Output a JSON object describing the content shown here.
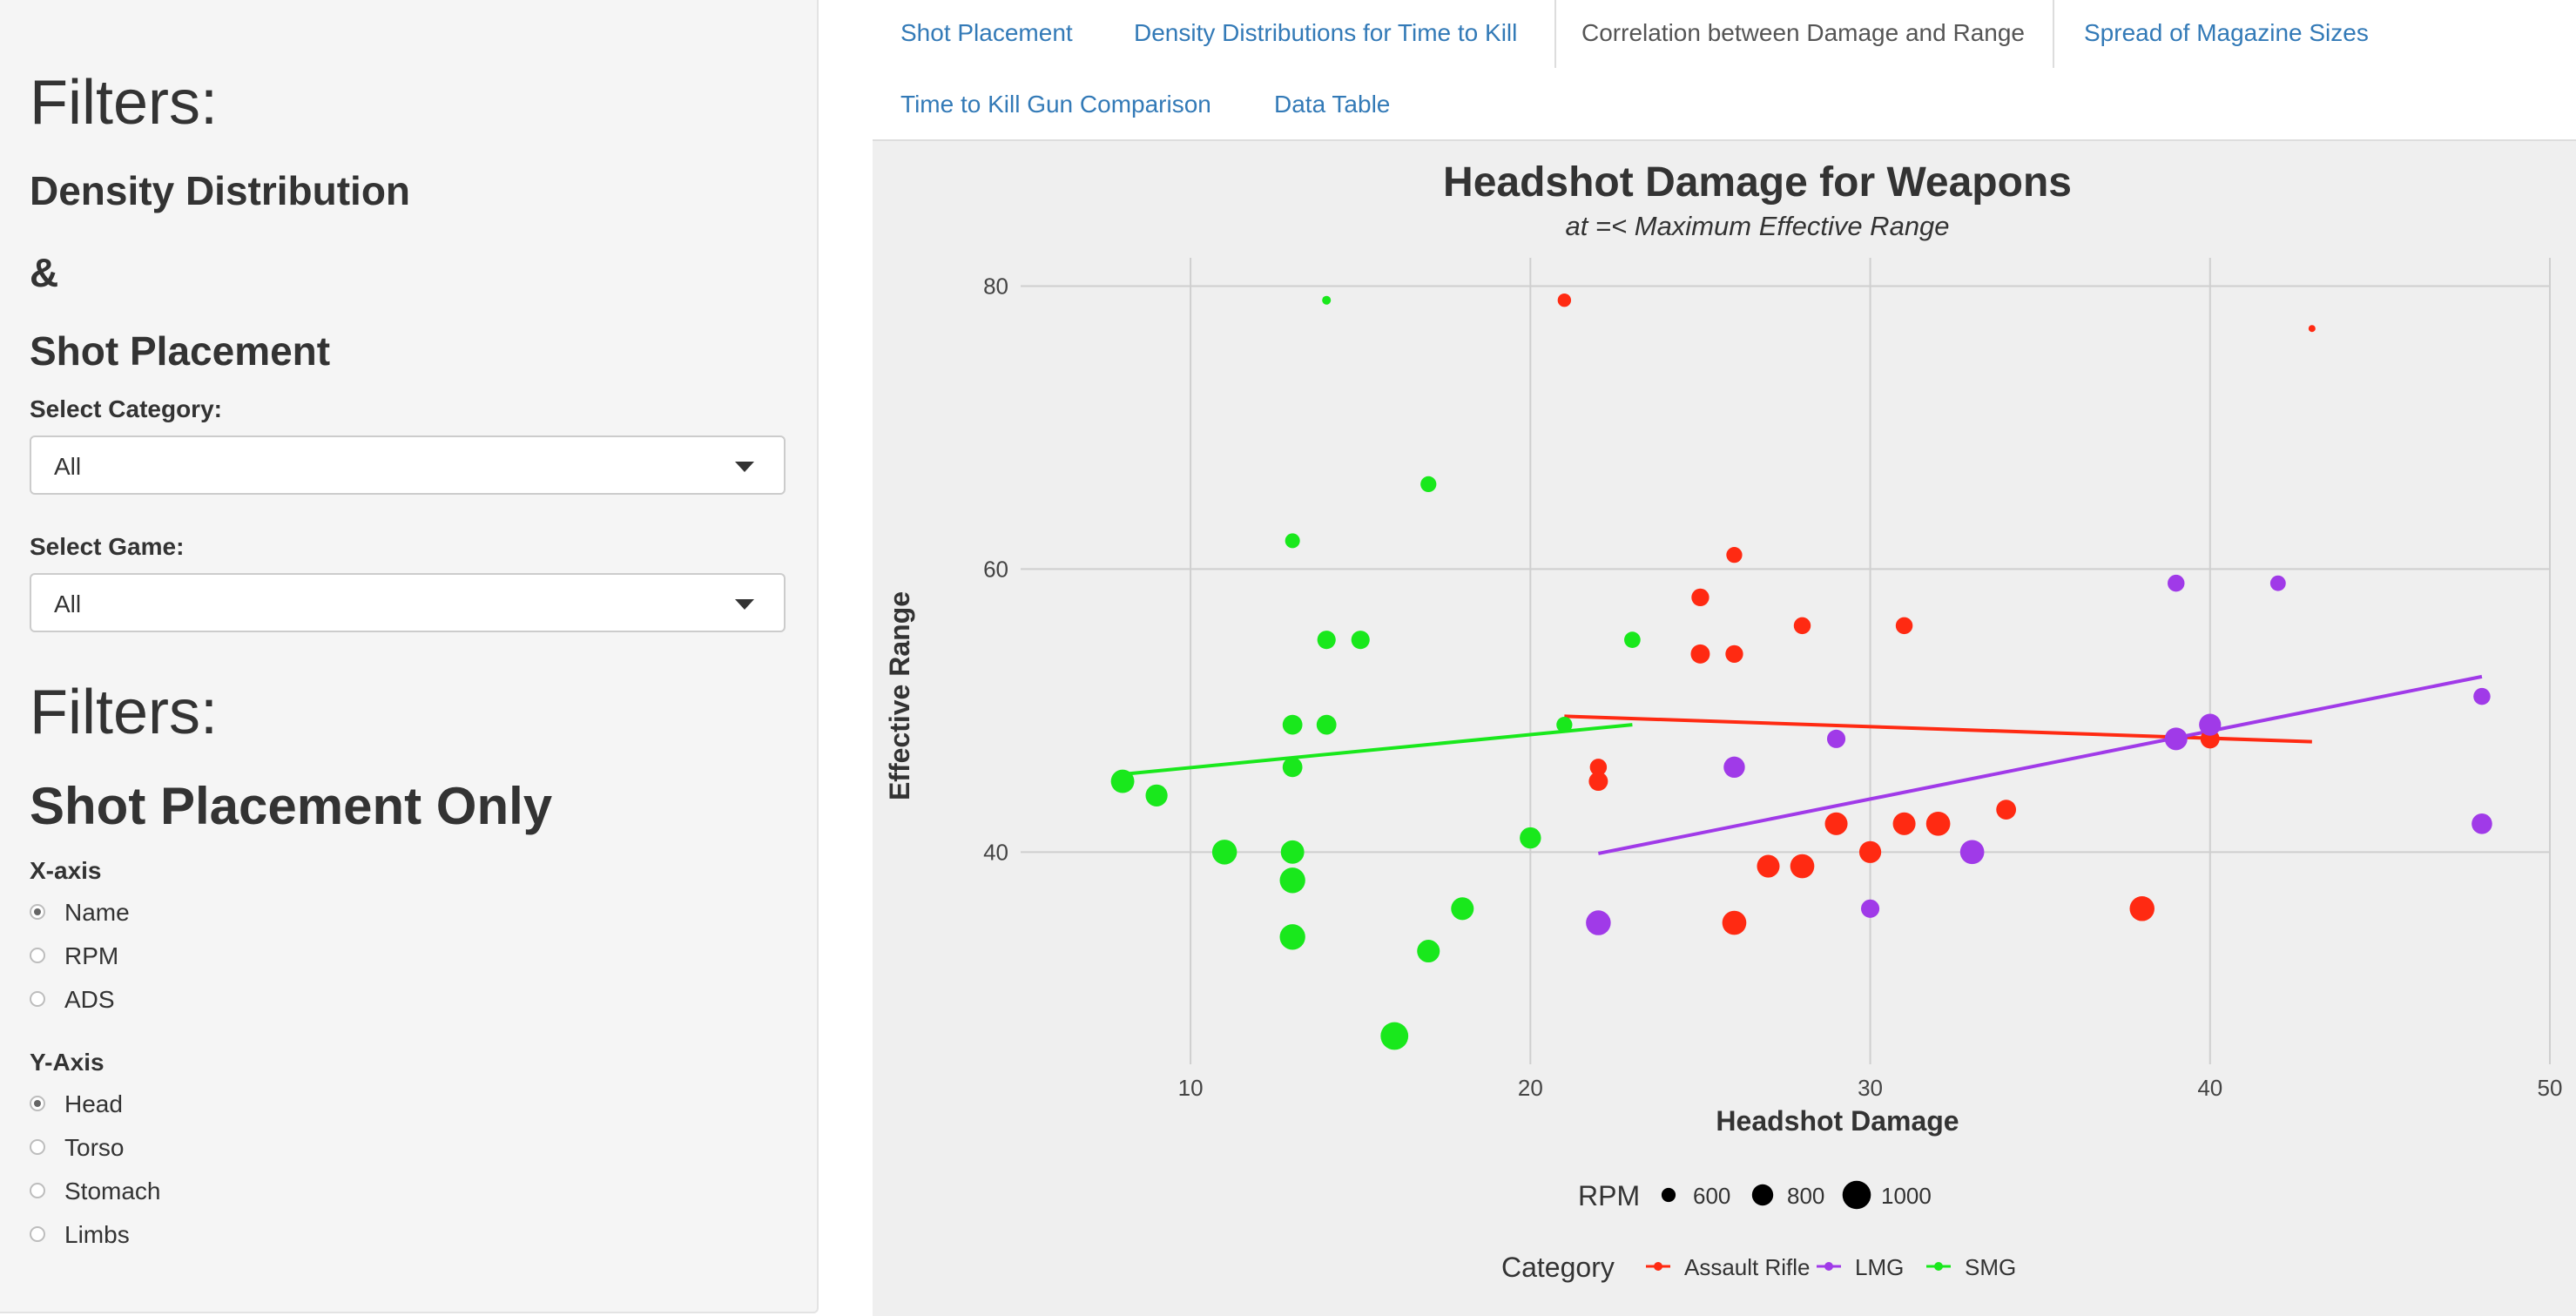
{
  "sidebar": {
    "filters_title_1": "Filters:",
    "subtitle_density": "Density Distribution",
    "subtitle_amp": "&",
    "subtitle_shot": "Shot Placement",
    "category_label": "Select Category:",
    "category_value": "All",
    "game_label": "Select Game:",
    "game_value": "All",
    "filters_title_2": "Filters:",
    "subtitle_shot_only": "Shot Placement Only",
    "xaxis_label": "X-axis",
    "xaxis_options": [
      {
        "label": "Name",
        "selected": true
      },
      {
        "label": "RPM",
        "selected": false
      },
      {
        "label": "ADS",
        "selected": false
      }
    ],
    "yaxis_label": "Y-Axis",
    "yaxis_options": [
      {
        "label": "Head",
        "selected": true
      },
      {
        "label": "Torso",
        "selected": false
      },
      {
        "label": "Stomach",
        "selected": false
      },
      {
        "label": "Limbs",
        "selected": false
      }
    ]
  },
  "tabs": [
    {
      "label": "Shot Placement",
      "active": false
    },
    {
      "label": "Density Distributions for Time to Kill",
      "active": false
    },
    {
      "label": "Correlation between Damage and Range",
      "active": true
    },
    {
      "label": "Spread of Magazine Sizes",
      "active": false
    },
    {
      "label": "Time to Kill Gun Comparison",
      "active": false
    },
    {
      "label": "Data Table",
      "active": false
    }
  ],
  "colors": {
    "Assault Rifle": "#ff2a12",
    "LMG": "#a03ae8",
    "SMG": "#19e81c",
    "link": "#337ab7",
    "panel": "#efefef"
  },
  "chart_data": {
    "type": "scatter",
    "title": "Headshot Damage for Weapons",
    "subtitle": "at =< Maximum Effective Range",
    "xlabel": "Headshot Damage",
    "ylabel": "Effective Range",
    "xlim": [
      5,
      50
    ],
    "ylim": [
      25,
      82
    ],
    "xticks": [
      10,
      20,
      30,
      40,
      50
    ],
    "yticks": [
      40,
      60,
      80
    ],
    "grid": true,
    "size_legend": {
      "title": "RPM",
      "values": [
        600,
        800,
        1000
      ]
    },
    "color_legend": {
      "title": "Category",
      "entries": [
        "Assault Rifle",
        "LMG",
        "SMG"
      ]
    },
    "series": [
      {
        "name": "SMG",
        "points": [
          {
            "x": 14,
            "y": 79,
            "rpm": 450
          },
          {
            "x": 17,
            "y": 66,
            "rpm": 650
          },
          {
            "x": 13,
            "y": 62,
            "rpm": 620
          },
          {
            "x": 14,
            "y": 55,
            "rpm": 720
          },
          {
            "x": 15,
            "y": 55,
            "rpm": 720
          },
          {
            "x": 23,
            "y": 55,
            "rpm": 660
          },
          {
            "x": 13,
            "y": 49,
            "rpm": 760
          },
          {
            "x": 14,
            "y": 49,
            "rpm": 760
          },
          {
            "x": 21,
            "y": 49,
            "rpm": 650
          },
          {
            "x": 13,
            "y": 46,
            "rpm": 760
          },
          {
            "x": 8,
            "y": 45,
            "rpm": 860
          },
          {
            "x": 9,
            "y": 44,
            "rpm": 820
          },
          {
            "x": 11,
            "y": 40,
            "rpm": 900
          },
          {
            "x": 13,
            "y": 40,
            "rpm": 860
          },
          {
            "x": 20,
            "y": 41,
            "rpm": 800
          },
          {
            "x": 13,
            "y": 38,
            "rpm": 920
          },
          {
            "x": 18,
            "y": 36,
            "rpm": 840
          },
          {
            "x": 13,
            "y": 34,
            "rpm": 920
          },
          {
            "x": 17,
            "y": 33,
            "rpm": 840
          },
          {
            "x": 16,
            "y": 27,
            "rpm": 980
          }
        ],
        "trend": [
          {
            "x": 8,
            "y": 45.5
          },
          {
            "x": 23,
            "y": 49.0
          }
        ]
      },
      {
        "name": "Assault Rifle",
        "points": [
          {
            "x": 21,
            "y": 79,
            "rpm": 580
          },
          {
            "x": 43,
            "y": 77,
            "rpm": 400
          },
          {
            "x": 26,
            "y": 61,
            "rpm": 650
          },
          {
            "x": 25,
            "y": 58,
            "rpm": 700
          },
          {
            "x": 28,
            "y": 56,
            "rpm": 680
          },
          {
            "x": 31,
            "y": 56,
            "rpm": 680
          },
          {
            "x": 25,
            "y": 54,
            "rpm": 740
          },
          {
            "x": 26,
            "y": 54,
            "rpm": 700
          },
          {
            "x": 40,
            "y": 48,
            "rpm": 740
          },
          {
            "x": 22,
            "y": 46,
            "rpm": 680
          },
          {
            "x": 22,
            "y": 45,
            "rpm": 740
          },
          {
            "x": 34,
            "y": 43,
            "rpm": 760
          },
          {
            "x": 29,
            "y": 42,
            "rpm": 840
          },
          {
            "x": 31,
            "y": 42,
            "rpm": 840
          },
          {
            "x": 32,
            "y": 42,
            "rpm": 880
          },
          {
            "x": 30,
            "y": 40,
            "rpm": 820
          },
          {
            "x": 27,
            "y": 39,
            "rpm": 840
          },
          {
            "x": 28,
            "y": 39,
            "rpm": 880
          },
          {
            "x": 26,
            "y": 35,
            "rpm": 880
          },
          {
            "x": 38,
            "y": 36,
            "rpm": 900
          }
        ],
        "trend": [
          {
            "x": 21,
            "y": 49.6
          },
          {
            "x": 43,
            "y": 47.8
          }
        ]
      },
      {
        "name": "LMG",
        "points": [
          {
            "x": 39,
            "y": 59,
            "rpm": 680
          },
          {
            "x": 42,
            "y": 59,
            "rpm": 640
          },
          {
            "x": 48,
            "y": 51,
            "rpm": 680
          },
          {
            "x": 29,
            "y": 48,
            "rpm": 720
          },
          {
            "x": 39,
            "y": 48,
            "rpm": 840
          },
          {
            "x": 40,
            "y": 49,
            "rpm": 820
          },
          {
            "x": 26,
            "y": 46,
            "rpm": 800
          },
          {
            "x": 48,
            "y": 42,
            "rpm": 780
          },
          {
            "x": 33,
            "y": 40,
            "rpm": 880
          },
          {
            "x": 30,
            "y": 36,
            "rpm": 720
          },
          {
            "x": 22,
            "y": 35,
            "rpm": 900
          }
        ],
        "trend": [
          {
            "x": 22,
            "y": 39.9
          },
          {
            "x": 48,
            "y": 52.4
          }
        ]
      }
    ]
  }
}
